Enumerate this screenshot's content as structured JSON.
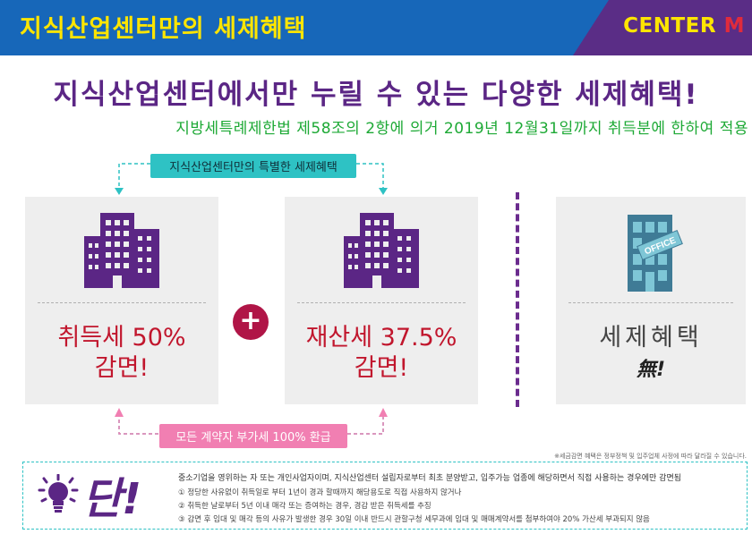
{
  "header": {
    "title": "지식산업센터만의 세제혜택",
    "brand_prefix": "CENTER ",
    "brand_suffix": "M",
    "bg_color": "#1767b9",
    "brand_color": "#5a2d86"
  },
  "headline": "지식산업센터에서만 누릴 수 있는 다양한 세제혜택!",
  "subline": "지방세특례제한법 제58조의 2항에 의거 2019년 12월31일까지 취득분에 한하여 적용",
  "tag_top": "지식산업센터만의 특별한 세제혜택",
  "tag_bottom": "모든 계약자 부가세 100% 환급",
  "cards": [
    {
      "icon": "building-icon",
      "line1": "취득세 50%",
      "line2": "감면!"
    },
    {
      "icon": "building-icon",
      "line1": "재산세 37.5%",
      "line2": "감면!"
    },
    {
      "icon": "office-building-icon",
      "line1": "세제혜택",
      "line2": "無!"
    }
  ],
  "plus": "+",
  "note": "※세금감면 혜택은 정부정책 및 입주업체 사정에 따라 달라질 수 있습니다.",
  "dan": {
    "char": "단!",
    "lead": "중소기업을 영위하는 자 또는 개인사업자이며, 지식산업센터 설립자로부터 최초 분양받고, 입주가능 업종에 해당하면서 직접 사용하는 경우에만 감면됨",
    "items": [
      "① 정당한 사유없이 취득일로 부터 1년이 경과 할때까지 해당용도로 직접 사용하지 않거나",
      "② 취득한 날로부터 5년 이내 매각 또는 증여하는 경우, 경감 받은 취득세를 추징",
      "③ 감면 후 임대 및 매각 등의 사유가 발생한 경우 30일 이내 반드시 관할구청 세무과에 임대 및 매매계약서를 첨부하여야 20% 가산세 부과되지 않음"
    ]
  }
}
